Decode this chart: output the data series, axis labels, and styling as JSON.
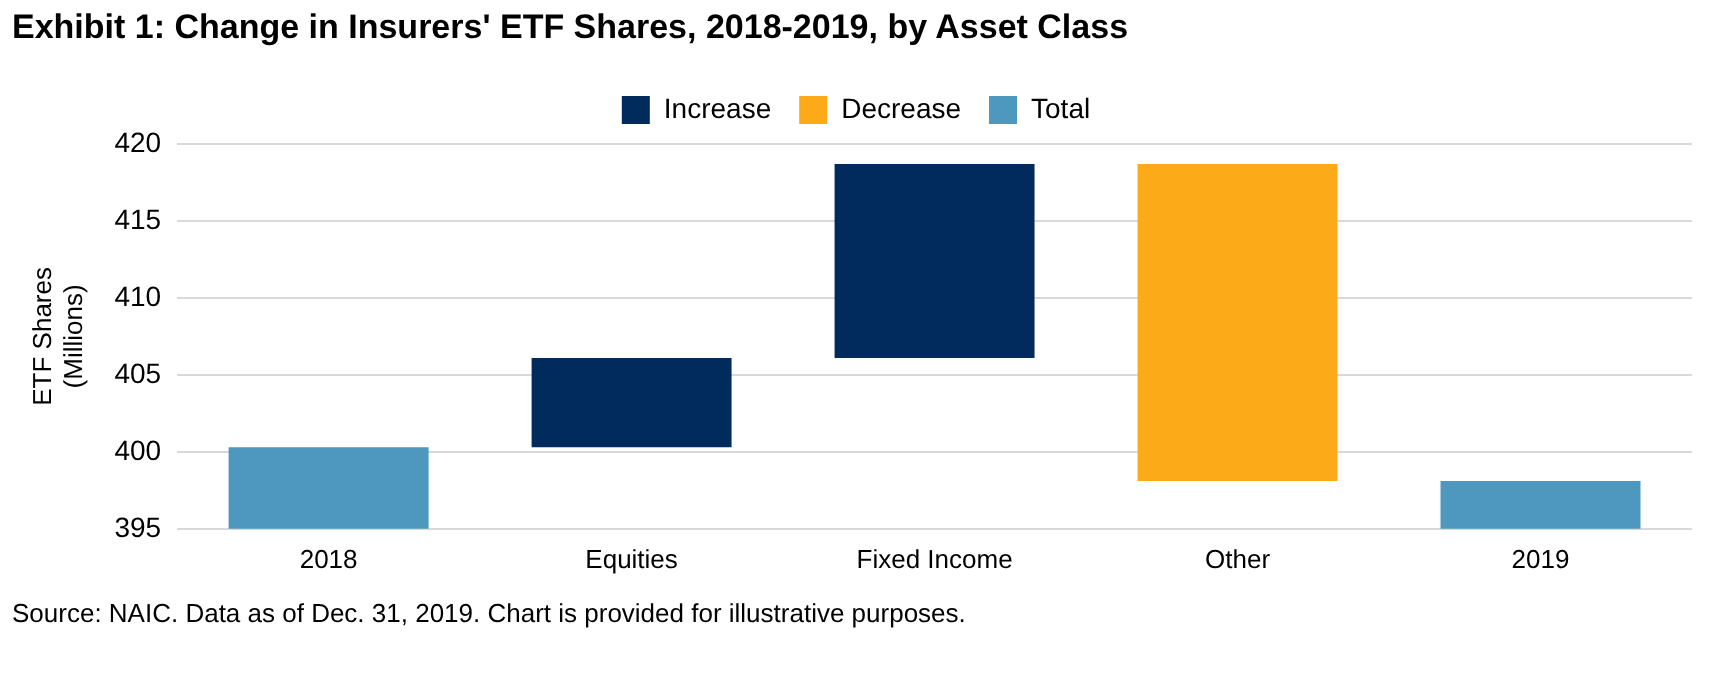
{
  "chart_data": {
    "type": "bar",
    "title": "Exhibit 1: Change in Insurers' ETF Shares, 2018-2019, by Asset Class",
    "ylabel": "ETF Shares (Millions)",
    "categories": [
      "2018",
      "Equities",
      "Fixed Income",
      "Other",
      "2019"
    ],
    "series": [
      {
        "name": "Increase",
        "color": "#002b5c",
        "values": [
          null,
          5.8,
          12.6,
          null,
          null
        ],
        "base": [
          null,
          400.3,
          406.1,
          null,
          null
        ]
      },
      {
        "name": "Decrease",
        "color": "#fdaa19",
        "values": [
          null,
          null,
          null,
          -20.6,
          null
        ],
        "base": [
          null,
          null,
          null,
          418.7,
          null
        ]
      },
      {
        "name": "Total",
        "color": "#4e97bf",
        "values": [
          400.3,
          null,
          null,
          null,
          398.1
        ]
      }
    ],
    "ylim": [
      395,
      420
    ],
    "yticks": [
      395,
      400,
      405,
      410,
      415,
      420
    ],
    "grid": "y",
    "legend": "top",
    "annotations": [
      "Source: NAIC. Data as of Dec. 31, 2019. Chart is provided for illustrative purposes."
    ]
  }
}
